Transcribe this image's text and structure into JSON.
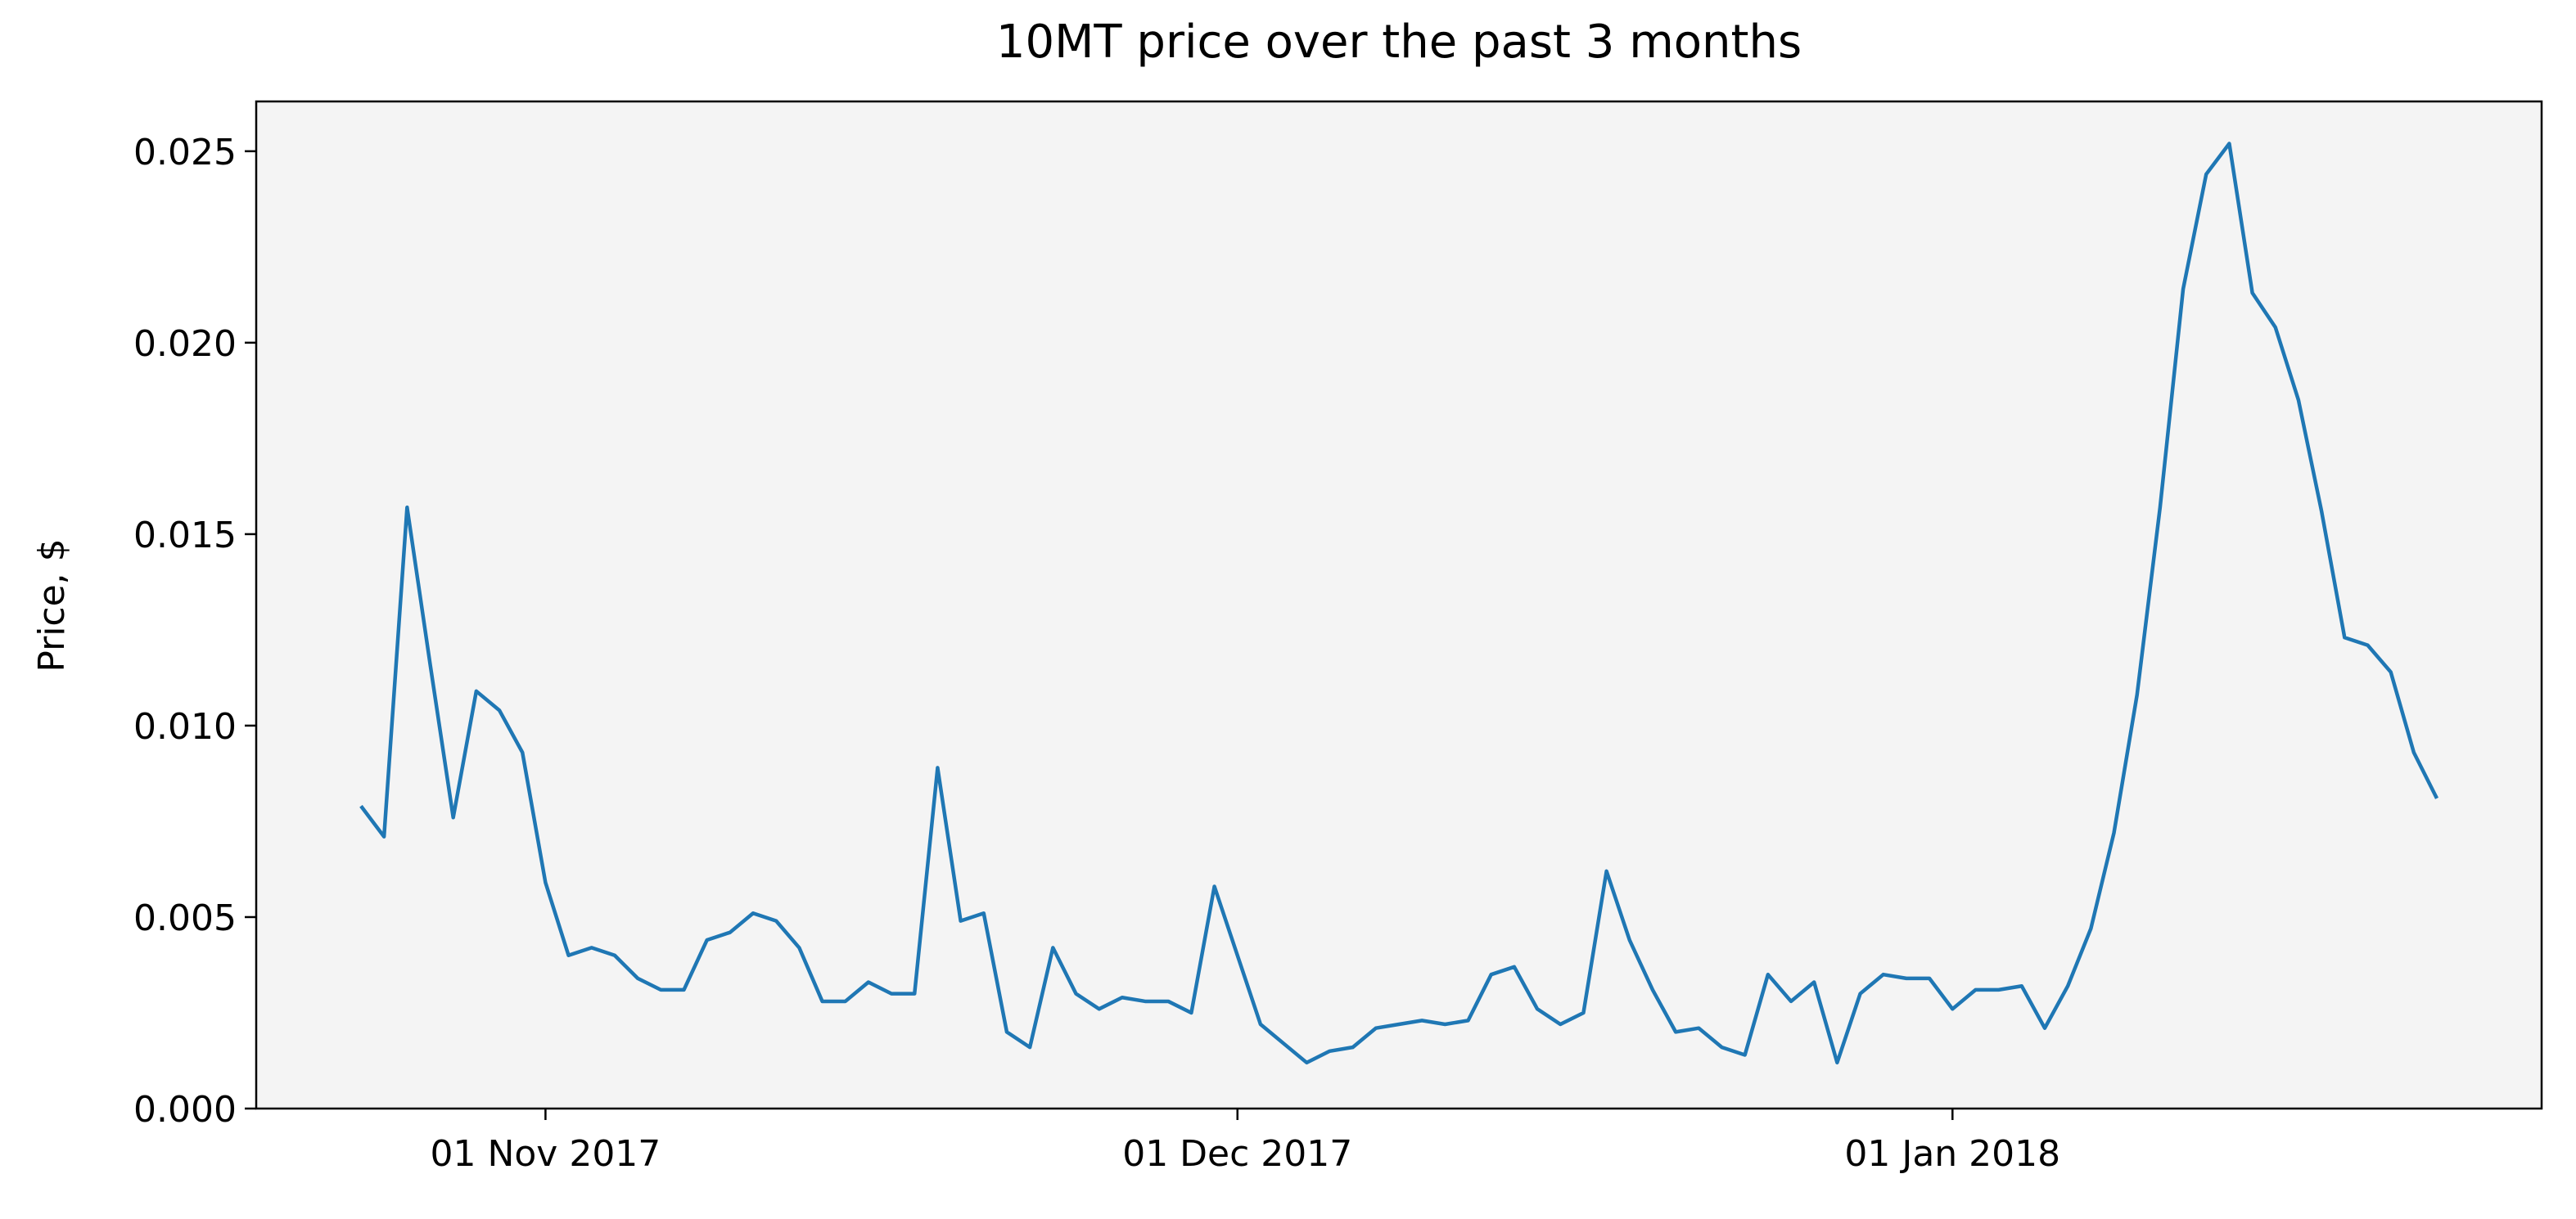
{
  "chart_data": {
    "type": "line",
    "title": "10MT price over the past 3 months",
    "ylabel": "Price, $",
    "color": "#1f77b4",
    "x": [
      "2017-10-24",
      "2017-10-25",
      "2017-10-26",
      "2017-10-27",
      "2017-10-28",
      "2017-10-29",
      "2017-10-30",
      "2017-10-31",
      "2017-11-01",
      "2017-11-02",
      "2017-11-03",
      "2017-11-04",
      "2017-11-05",
      "2017-11-06",
      "2017-11-07",
      "2017-11-08",
      "2017-11-09",
      "2017-11-10",
      "2017-11-11",
      "2017-11-12",
      "2017-11-13",
      "2017-11-14",
      "2017-11-15",
      "2017-11-16",
      "2017-11-17",
      "2017-11-18",
      "2017-11-19",
      "2017-11-20",
      "2017-11-21",
      "2017-11-22",
      "2017-11-23",
      "2017-11-24",
      "2017-11-25",
      "2017-11-26",
      "2017-11-27",
      "2017-11-28",
      "2017-11-29",
      "2017-11-30",
      "2017-12-01",
      "2017-12-02",
      "2017-12-03",
      "2017-12-04",
      "2017-12-05",
      "2017-12-06",
      "2017-12-07",
      "2017-12-08",
      "2017-12-09",
      "2017-12-10",
      "2017-12-11",
      "2017-12-12",
      "2017-12-13",
      "2017-12-14",
      "2017-12-15",
      "2017-12-16",
      "2017-12-17",
      "2017-12-18",
      "2017-12-19",
      "2017-12-20",
      "2017-12-21",
      "2017-12-22",
      "2017-12-23",
      "2017-12-24",
      "2017-12-25",
      "2017-12-26",
      "2017-12-27",
      "2017-12-28",
      "2017-12-29",
      "2017-12-30",
      "2017-12-31",
      "2018-01-01",
      "2018-01-02",
      "2018-01-03",
      "2018-01-04",
      "2018-01-05",
      "2018-01-06",
      "2018-01-07",
      "2018-01-08",
      "2018-01-09",
      "2018-01-10",
      "2018-01-11",
      "2018-01-12",
      "2018-01-13",
      "2018-01-14",
      "2018-01-15",
      "2018-01-16",
      "2018-01-17",
      "2018-01-18",
      "2018-01-19",
      "2018-01-20",
      "2018-01-21",
      "2018-01-22"
    ],
    "values": [
      0.0079,
      0.0071,
      0.0157,
      0.0116,
      0.0076,
      0.0109,
      0.0104,
      0.0093,
      0.0059,
      0.004,
      0.0042,
      0.004,
      0.0034,
      0.0031,
      0.0031,
      0.0044,
      0.0046,
      0.0051,
      0.0049,
      0.0042,
      0.0028,
      0.0028,
      0.0033,
      0.003,
      0.003,
      0.0089,
      0.0049,
      0.0051,
      0.002,
      0.0016,
      0.0042,
      0.003,
      0.0026,
      0.0029,
      0.0028,
      0.0028,
      0.0025,
      0.0058,
      0.004,
      0.0022,
      0.0017,
      0.0012,
      0.0015,
      0.0016,
      0.0021,
      0.0022,
      0.0023,
      0.0022,
      0.0023,
      0.0035,
      0.0037,
      0.0026,
      0.0022,
      0.0025,
      0.0062,
      0.0044,
      0.0031,
      0.002,
      0.0021,
      0.0016,
      0.0014,
      0.0035,
      0.0028,
      0.0033,
      0.0012,
      0.003,
      0.0035,
      0.0034,
      0.0034,
      0.0026,
      0.0031,
      0.0031,
      0.0032,
      0.0021,
      0.0032,
      0.0047,
      0.0072,
      0.0108,
      0.0157,
      0.0214,
      0.0244,
      0.0252,
      0.0213,
      0.0204,
      0.0185,
      0.0156,
      0.0123,
      0.0121,
      0.0114,
      0.0093,
      0.0081
    ],
    "xlim": [
      "2017-10-19T11:00",
      "2018-01-26T13:00"
    ],
    "xticks": [
      {
        "value": "2017-11-01",
        "label": "01 Nov 2017"
      },
      {
        "value": "2017-12-01",
        "label": "01 Dec 2017"
      },
      {
        "value": "2018-01-01",
        "label": "01 Jan 2018"
      }
    ],
    "ylim": [
      0,
      0.0263
    ],
    "yticks": [
      {
        "value": 0,
        "label": "0.000"
      },
      {
        "value": 0.005,
        "label": "0.005"
      },
      {
        "value": 0.01,
        "label": "0.010"
      },
      {
        "value": 0.015,
        "label": "0.015"
      },
      {
        "value": 0.02,
        "label": "0.020"
      },
      {
        "value": 0.025,
        "label": "0.025"
      }
    ]
  }
}
